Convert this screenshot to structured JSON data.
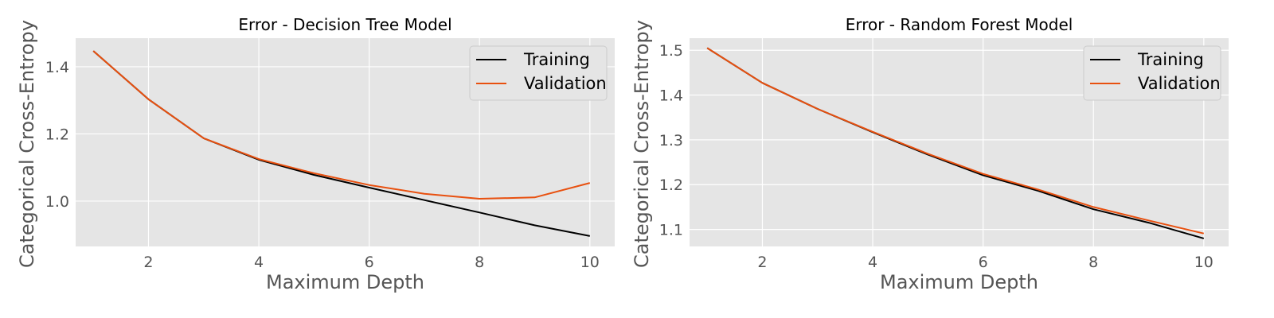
{
  "colors": {
    "figure_background": "#ffffff",
    "axes_background": "#e5e5e5",
    "grid": "#ffffff",
    "training": "#000000",
    "validation": "#e8500f",
    "legend_background": "#e5e5e5",
    "legend_border": "#cccccc"
  },
  "chart_data": [
    {
      "type": "line",
      "title": "Error - Decision Tree Model",
      "xlabel": "Maximum Depth",
      "ylabel": "Categorical Cross-Entropy",
      "x": [
        1,
        2,
        3,
        4,
        5,
        6,
        7,
        8,
        9,
        10
      ],
      "xlim": [
        0.68,
        10.45
      ],
      "ylim": [
        0.865,
        1.485
      ],
      "xticks": [
        2,
        4,
        6,
        8,
        10
      ],
      "xtick_labels": [
        "2",
        "4",
        "6",
        "8",
        "10"
      ],
      "yticks": [
        1.0,
        1.2,
        1.4
      ],
      "ytick_labels": [
        "1.0",
        "1.2",
        "1.4"
      ],
      "grid": true,
      "legend_position": "top-right",
      "series": [
        {
          "name": "Training",
          "color": "#000000",
          "values": [
            1.447,
            1.303,
            1.187,
            1.123,
            1.078,
            1.04,
            1.003,
            0.966,
            0.928,
            0.896
          ]
        },
        {
          "name": "Validation",
          "color": "#e8500f",
          "values": [
            1.447,
            1.303,
            1.187,
            1.125,
            1.083,
            1.048,
            1.022,
            1.007,
            1.011,
            1.054
          ]
        }
      ]
    },
    {
      "type": "line",
      "title": "Error - Random Forest Model",
      "xlabel": "Maximum Depth",
      "ylabel": "Categorical Cross-Entropy",
      "x": [
        1,
        2,
        3,
        4,
        5,
        6,
        7,
        8,
        9,
        10
      ],
      "xlim": [
        0.68,
        10.45
      ],
      "ylim": [
        1.062,
        1.527
      ],
      "xticks": [
        2,
        4,
        6,
        8,
        10
      ],
      "xtick_labels": [
        "2",
        "4",
        "6",
        "8",
        "10"
      ],
      "yticks": [
        1.1,
        1.2,
        1.3,
        1.4,
        1.5
      ],
      "ytick_labels": [
        "1.1",
        "1.2",
        "1.3",
        "1.4",
        "1.5"
      ],
      "grid": true,
      "legend_position": "top-right",
      "series": [
        {
          "name": "Training",
          "color": "#000000",
          "values": [
            1.505,
            1.427,
            1.369,
            1.317,
            1.267,
            1.221,
            1.186,
            1.145,
            1.115,
            1.08
          ]
        },
        {
          "name": "Validation",
          "color": "#e8500f",
          "values": [
            1.505,
            1.427,
            1.369,
            1.318,
            1.269,
            1.224,
            1.189,
            1.15,
            1.12,
            1.091
          ]
        }
      ]
    }
  ]
}
